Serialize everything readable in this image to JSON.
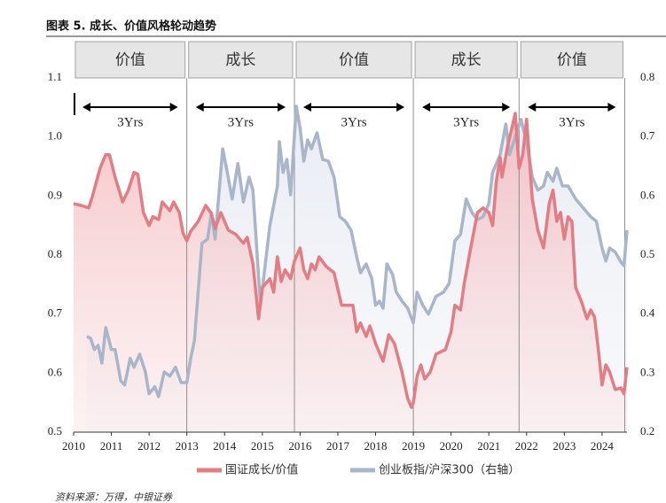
{
  "chart_data": {
    "type": "line",
    "title": "图表 5. 成长、价值风格轮动趋势",
    "source": "资料来源：万得，中银证券",
    "xlim": [
      2010,
      2024.66
    ],
    "xticks": [
      2010,
      2011,
      2012,
      2013,
      2014,
      2015,
      2016,
      2017,
      2018,
      2019,
      2020,
      2021,
      2022,
      2023,
      2024
    ],
    "ylim": [
      0.5,
      1.1
    ],
    "yticks": [
      0.5,
      0.6,
      0.7,
      0.8,
      0.9,
      {
        "value": 1.0,
        "label": "1.0"
      },
      1.1
    ],
    "y2lim": [
      0.2,
      0.8
    ],
    "y2ticks": [
      0.2,
      0.3,
      0.4,
      0.5,
      0.6,
      0.7,
      0.8
    ],
    "regimes": [
      {
        "label": "价值",
        "span": "3Yrs",
        "start": 2010,
        "end": 2013.0
      },
      {
        "label": "成长",
        "span": "3Yrs",
        "start": 2013.0,
        "end": 2015.85
      },
      {
        "label": "价值",
        "span": "3Yrs",
        "start": 2015.85,
        "end": 2019.0
      },
      {
        "label": "成长",
        "span": "3Yrs",
        "start": 2019.0,
        "end": 2021.8
      },
      {
        "label": "价值",
        "span": "3Yrs",
        "start": 2021.8,
        "end": 2024.6
      }
    ],
    "series": [
      {
        "name": "国证成长/价值",
        "color": "#e27d84",
        "axis": "y",
        "x": [
          2010.0,
          2010.2,
          2010.4,
          2010.5,
          2010.7,
          2010.85,
          2010.95,
          2011.1,
          2011.3,
          2011.45,
          2011.6,
          2011.7,
          2011.85,
          2012.0,
          2012.1,
          2012.25,
          2012.35,
          2012.55,
          2012.65,
          2012.8,
          2012.9,
          2013.0,
          2013.1,
          2013.3,
          2013.5,
          2013.65,
          2013.75,
          2013.9,
          2014.1,
          2014.3,
          2014.5,
          2014.6,
          2014.75,
          2014.9,
          2015.0,
          2015.2,
          2015.3,
          2015.4,
          2015.5,
          2015.6,
          2015.75,
          2015.85,
          2016.0,
          2016.1,
          2016.2,
          2016.3,
          2016.4,
          2016.5,
          2016.7,
          2016.9,
          2017.1,
          2017.4,
          2017.5,
          2017.6,
          2017.75,
          2017.85,
          2018.0,
          2018.2,
          2018.35,
          2018.5,
          2018.7,
          2018.85,
          2018.95,
          2019.0,
          2019.1,
          2019.2,
          2019.3,
          2019.45,
          2019.6,
          2019.85,
          2020.0,
          2020.1,
          2020.25,
          2020.35,
          2020.5,
          2020.7,
          2020.85,
          2021.0,
          2021.1,
          2021.2,
          2021.3,
          2021.35,
          2021.5,
          2021.7,
          2021.8,
          2021.9,
          2022.0,
          2022.15,
          2022.3,
          2022.45,
          2022.6,
          2022.7,
          2022.8,
          2022.9,
          2023.0,
          2023.1,
          2023.2,
          2023.3,
          2023.45,
          2023.6,
          2023.7,
          2023.8,
          2023.9,
          2024.0,
          2024.1,
          2024.2,
          2024.35,
          2024.5,
          2024.58,
          2024.66
        ],
        "values": [
          0.887,
          0.884,
          0.88,
          0.9,
          0.947,
          0.97,
          0.97,
          0.932,
          0.89,
          0.91,
          0.94,
          0.937,
          0.872,
          0.85,
          0.865,
          0.86,
          0.89,
          0.875,
          0.89,
          0.872,
          0.837,
          0.824,
          0.84,
          0.857,
          0.884,
          0.87,
          0.845,
          0.872,
          0.842,
          0.835,
          0.82,
          0.83,
          0.785,
          0.692,
          0.745,
          0.76,
          0.737,
          0.797,
          0.755,
          0.775,
          0.76,
          0.79,
          0.812,
          0.775,
          0.76,
          0.785,
          0.775,
          0.797,
          0.78,
          0.77,
          0.715,
          0.715,
          0.67,
          0.685,
          0.662,
          0.68,
          0.65,
          0.62,
          0.665,
          0.65,
          0.602,
          0.557,
          0.542,
          0.55,
          0.595,
          0.614,
          0.59,
          0.602,
          0.632,
          0.64,
          0.67,
          0.715,
          0.707,
          0.752,
          0.805,
          0.872,
          0.88,
          0.872,
          0.85,
          0.925,
          0.965,
          0.932,
          0.985,
          1.04,
          0.947,
          0.97,
          1.03,
          0.895,
          0.842,
          0.812,
          0.887,
          0.91,
          0.857,
          0.872,
          0.827,
          0.865,
          0.857,
          0.745,
          0.722,
          0.692,
          0.707,
          0.695,
          0.64,
          0.58,
          0.614,
          0.602,
          0.572,
          0.575,
          0.565,
          0.61
        ]
      },
      {
        "name": "创业板指/沪深300（右轴）",
        "color": "#a9b5c9",
        "axis": "y2",
        "x": [
          2010.35,
          2010.45,
          2010.55,
          2010.65,
          2010.75,
          2010.85,
          2011.0,
          2011.1,
          2011.25,
          2011.35,
          2011.5,
          2011.6,
          2011.75,
          2011.9,
          2012.0,
          2012.15,
          2012.25,
          2012.4,
          2012.55,
          2012.7,
          2012.85,
          2013.0,
          2013.1,
          2013.2,
          2013.4,
          2013.55,
          2013.65,
          2013.75,
          2013.95,
          2014.05,
          2014.2,
          2014.35,
          2014.5,
          2014.65,
          2014.75,
          2014.95,
          2015.2,
          2015.4,
          2015.45,
          2015.55,
          2015.65,
          2015.75,
          2015.9,
          2016.0,
          2016.1,
          2016.2,
          2016.3,
          2016.45,
          2016.6,
          2016.75,
          2016.9,
          2017.05,
          2017.2,
          2017.35,
          2017.5,
          2017.6,
          2017.75,
          2017.9,
          2018.0,
          2018.1,
          2018.2,
          2018.3,
          2018.45,
          2018.55,
          2018.7,
          2018.85,
          2019.0,
          2019.1,
          2019.25,
          2019.4,
          2019.6,
          2019.8,
          2019.95,
          2020.1,
          2020.25,
          2020.4,
          2020.55,
          2020.7,
          2020.85,
          2021.0,
          2021.1,
          2021.3,
          2021.45,
          2021.55,
          2021.7,
          2021.85,
          2022.0,
          2022.15,
          2022.3,
          2022.45,
          2022.55,
          2022.7,
          2022.8,
          2022.95,
          2023.1,
          2023.3,
          2023.5,
          2023.7,
          2023.85,
          2024.0,
          2024.1,
          2024.2,
          2024.35,
          2024.5,
          2024.58,
          2024.66
        ],
        "values": [
          0.362,
          0.359,
          0.34,
          0.347,
          0.317,
          0.377,
          0.34,
          0.34,
          0.287,
          0.28,
          0.325,
          0.31,
          0.332,
          0.302,
          0.265,
          0.277,
          0.26,
          0.302,
          0.295,
          0.31,
          0.284,
          0.284,
          0.325,
          0.355,
          0.52,
          0.527,
          0.572,
          0.527,
          0.68,
          0.647,
          0.595,
          0.655,
          0.59,
          0.632,
          0.61,
          0.415,
          0.55,
          0.617,
          0.692,
          0.64,
          0.662,
          0.602,
          0.752,
          0.715,
          0.659,
          0.695,
          0.68,
          0.707,
          0.662,
          0.659,
          0.632,
          0.565,
          0.557,
          0.542,
          0.497,
          0.47,
          0.485,
          0.46,
          0.415,
          0.422,
          0.41,
          0.485,
          0.467,
          0.437,
          0.422,
          0.41,
          0.385,
          0.437,
          0.415,
          0.4,
          0.43,
          0.437,
          0.452,
          0.524,
          0.535,
          0.595,
          0.572,
          0.56,
          0.565,
          0.587,
          0.64,
          0.67,
          0.722,
          0.67,
          0.7,
          0.73,
          0.692,
          0.632,
          0.61,
          0.617,
          0.64,
          0.625,
          0.647,
          0.617,
          0.617,
          0.595,
          0.58,
          0.565,
          0.557,
          0.512,
          0.49,
          0.512,
          0.505,
          0.488,
          0.482,
          0.542
        ]
      }
    ]
  }
}
